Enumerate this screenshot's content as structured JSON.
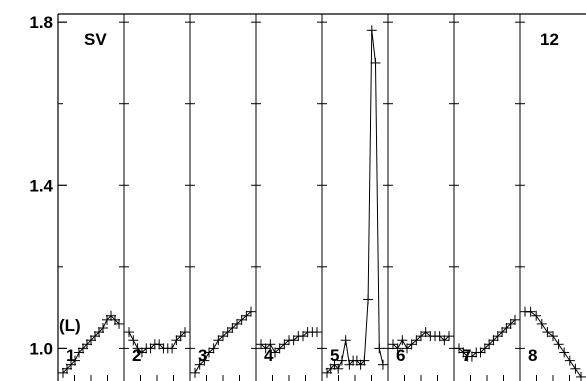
{
  "chart_data": {
    "type": "line",
    "title": "",
    "xlabel": "",
    "ylabel": "",
    "corner_left_label": "SV",
    "corner_right_label": "12",
    "unit_label": "(L)",
    "ylim": [
      0.92,
      1.82
    ],
    "yticks": [
      {
        "value": 1.0,
        "label": "1.0"
      },
      {
        "value": 1.4,
        "label": "1.4"
      },
      {
        "value": 1.8,
        "label": "1.8"
      }
    ],
    "grid": false,
    "legend": "none",
    "panels": [
      {
        "label": "1",
        "values": [
          0.94,
          0.95,
          0.96,
          0.97,
          0.99,
          1.0,
          1.01,
          1.02,
          1.03,
          1.04,
          1.05,
          1.07,
          1.08,
          1.07,
          1.06
        ]
      },
      {
        "label": "2",
        "values": [
          1.04,
          1.02,
          1.0,
          0.99,
          1.0,
          1.0,
          1.01,
          1.01,
          1.0,
          1.0,
          1.0,
          1.02,
          1.03,
          1.04
        ]
      },
      {
        "label": "3",
        "values": [
          0.94,
          0.96,
          0.97,
          0.99,
          1.0,
          1.02,
          1.03,
          1.04,
          1.05,
          1.06,
          1.07,
          1.08,
          1.09
        ]
      },
      {
        "label": "4",
        "values": [
          1.01,
          1.0,
          1.01,
          0.99,
          1.0,
          1.01,
          1.02,
          1.02,
          1.03,
          1.03,
          1.04,
          1.04,
          1.04
        ]
      },
      {
        "label": "5",
        "values": [
          0.94,
          0.95,
          0.96,
          0.95,
          0.97,
          1.02,
          0.96,
          0.97,
          0.97,
          0.96,
          0.97,
          1.12,
          1.78,
          1.7,
          1.0,
          0.96
        ]
      },
      {
        "label": "6",
        "values": [
          1.01,
          1.0,
          1.02,
          1.0,
          1.01,
          1.02,
          1.03,
          1.04,
          1.03,
          1.03,
          1.03,
          1.02,
          1.03
        ]
      },
      {
        "label": "7",
        "values": [
          1.0,
          0.99,
          0.98,
          0.98,
          0.99,
          0.99,
          1.0,
          1.01,
          1.02,
          1.03,
          1.04,
          1.05,
          1.06,
          1.07
        ]
      },
      {
        "label": "8",
        "values": [
          1.09,
          1.09,
          1.08,
          1.06,
          1.04,
          1.03,
          1.01,
          0.99,
          0.97,
          0.95,
          0.93
        ]
      }
    ]
  }
}
